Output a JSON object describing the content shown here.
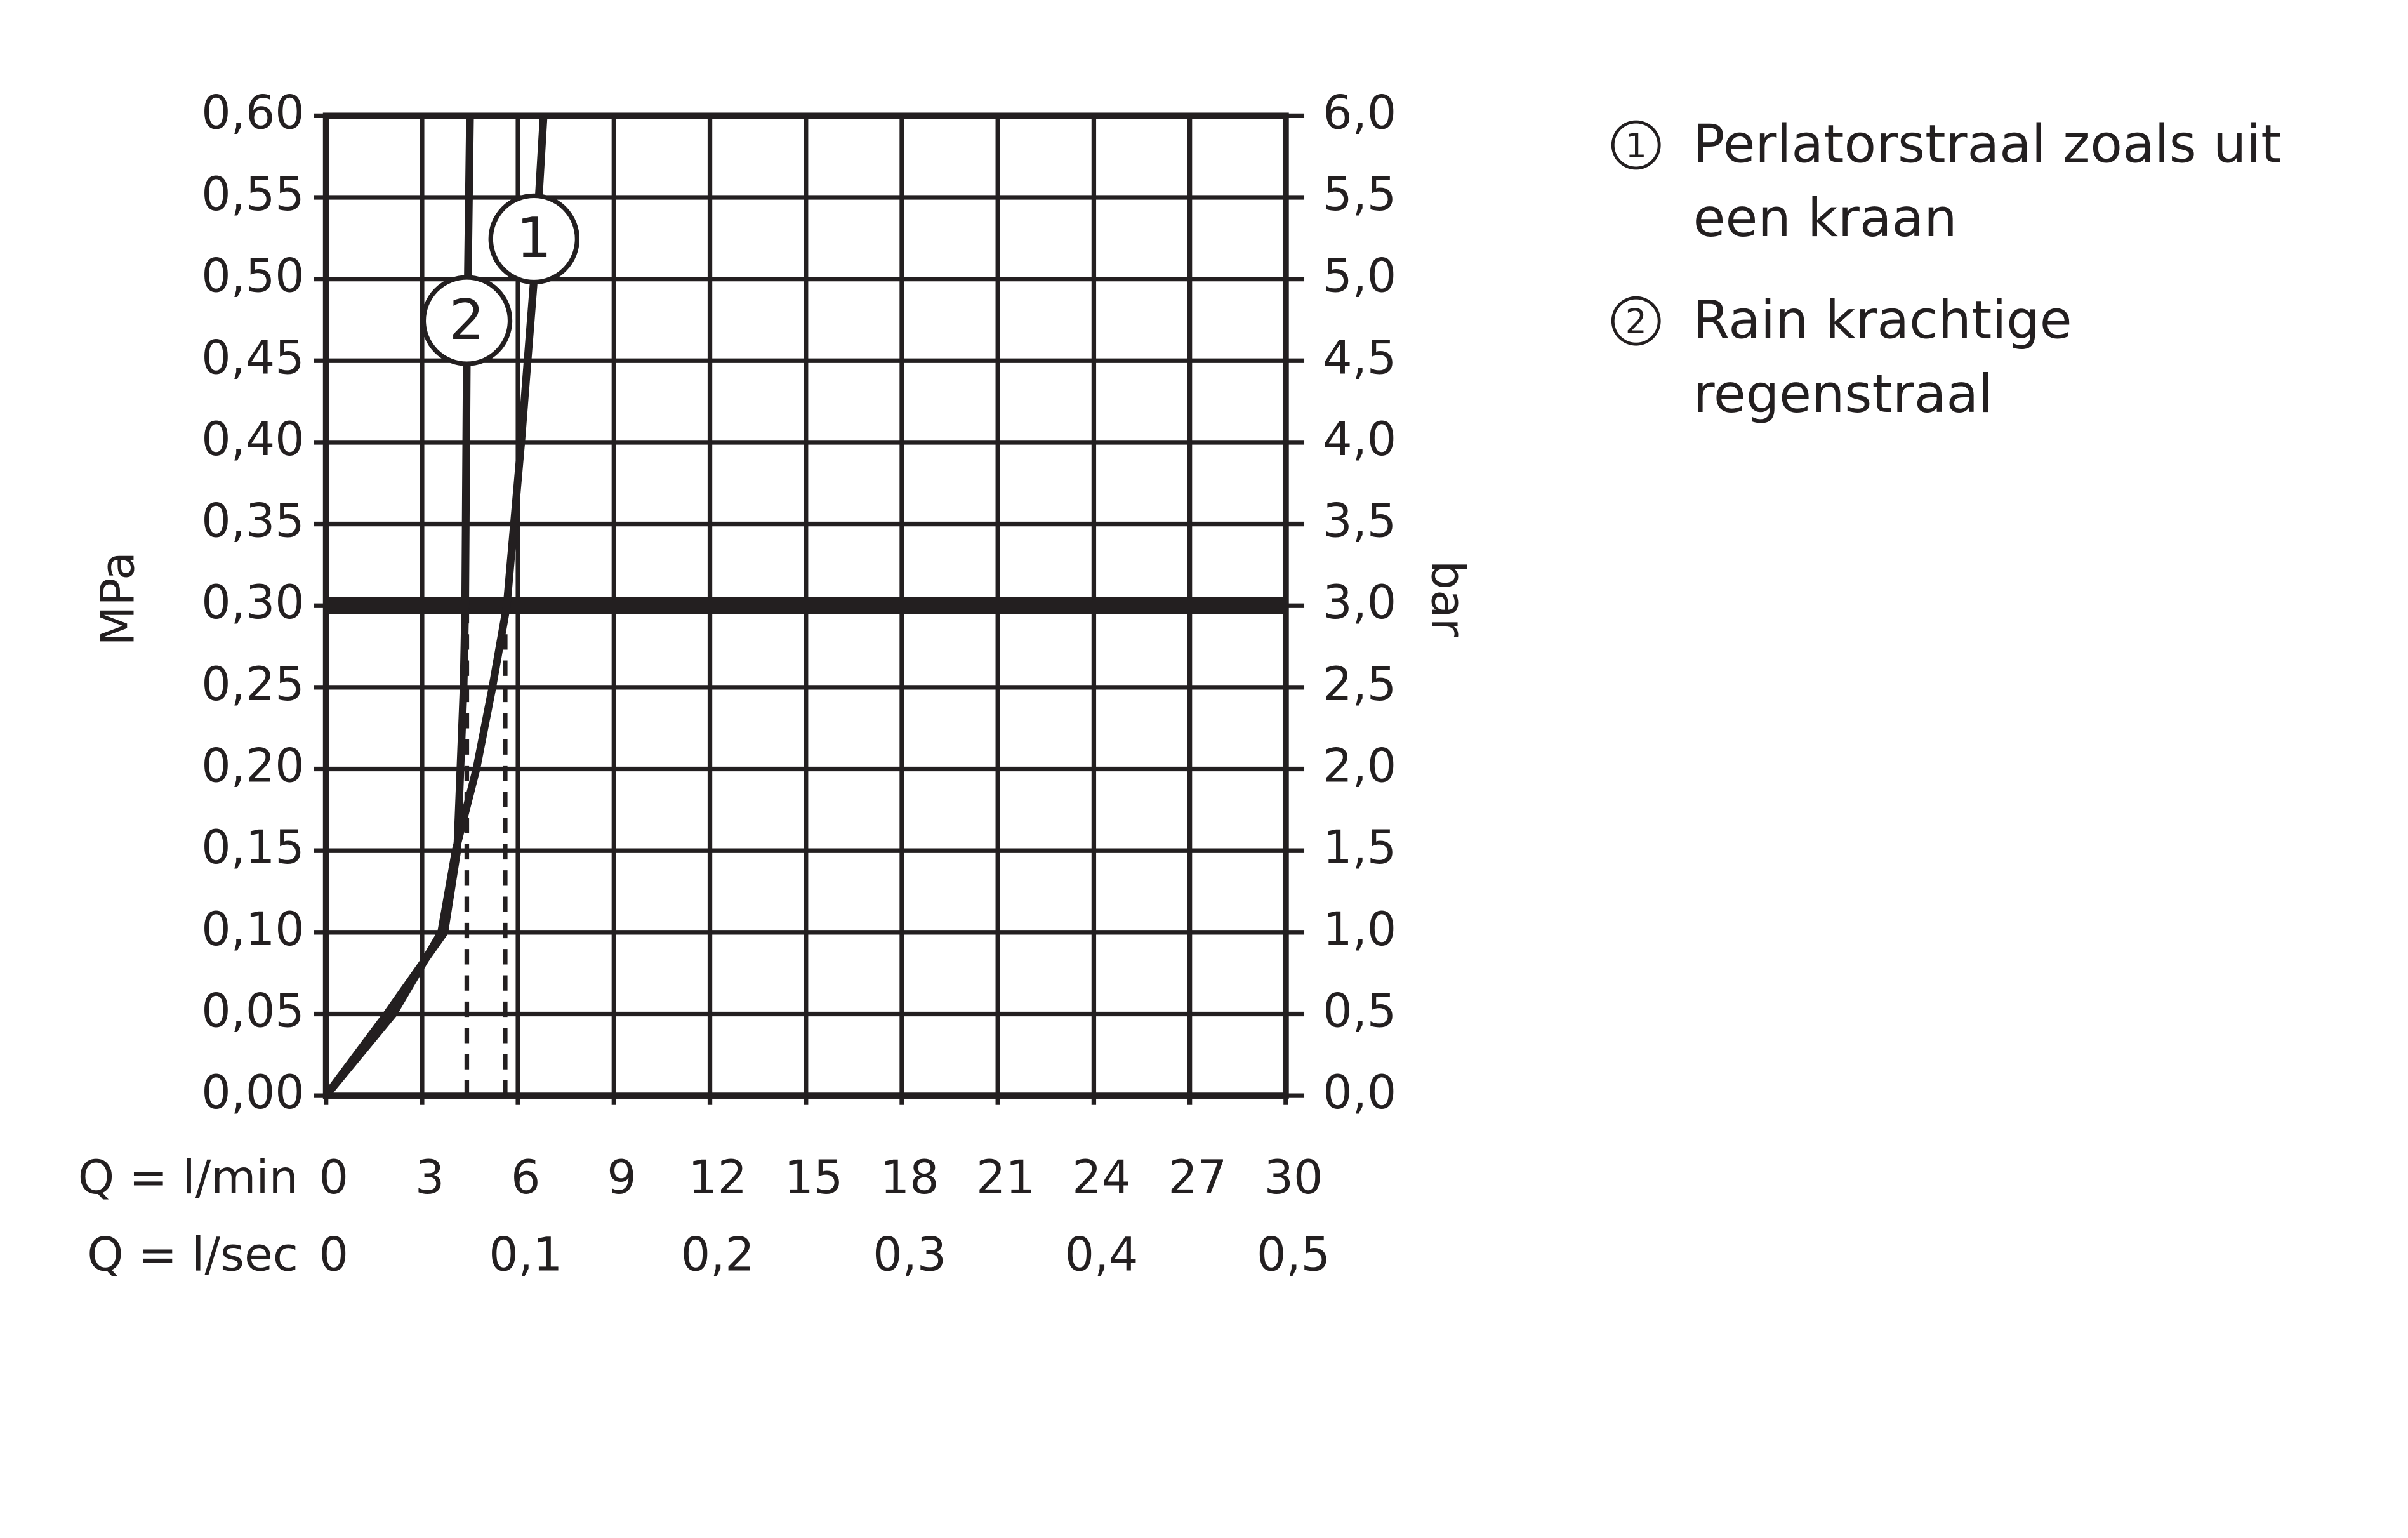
{
  "chart_data": {
    "type": "line",
    "y_label": "MPa",
    "y2_label": "bar",
    "x_label": "Q = l/min",
    "x2_label": "Q = l/sec",
    "xlim": [
      0,
      30
    ],
    "xticks": [
      0,
      3,
      6,
      9,
      12,
      15,
      18,
      21,
      24,
      27,
      30
    ],
    "x2lim": [
      0,
      0.5
    ],
    "x2ticks": [
      0,
      {
        "value": 0.1,
        "label": "0,1"
      },
      {
        "value": 0.2,
        "label": "0,2"
      },
      {
        "value": 0.3,
        "label": "0,3"
      },
      {
        "value": 0.4,
        "label": "0,4"
      },
      {
        "value": 0.5,
        "label": "0,5"
      }
    ],
    "ylim": [
      0,
      0.6
    ],
    "yticks": [
      {
        "value": 0,
        "label": "0,00"
      },
      {
        "value": 0.05,
        "label": "0,05"
      },
      {
        "value": 0.1,
        "label": "0,10"
      },
      {
        "value": 0.15,
        "label": "0,15"
      },
      {
        "value": 0.2,
        "label": "0,20"
      },
      {
        "value": 0.25,
        "label": "0,25"
      },
      {
        "value": 0.3,
        "label": "0,30"
      },
      {
        "value": 0.35,
        "label": "0,35"
      },
      {
        "value": 0.4,
        "label": "0,40"
      },
      {
        "value": 0.45,
        "label": "0,45"
      },
      {
        "value": 0.5,
        "label": "0,50"
      },
      {
        "value": 0.55,
        "label": "0,55"
      },
      {
        "value": 0.6,
        "label": "0,60"
      }
    ],
    "y2lim": [
      0,
      6
    ],
    "y2ticks": [
      {
        "value": 0,
        "label": "0,0"
      },
      {
        "value": 0.5,
        "label": "0,5"
      },
      {
        "value": 1,
        "label": "1,0"
      },
      {
        "value": 1.5,
        "label": "1,5"
      },
      {
        "value": 2,
        "label": "2,0"
      },
      {
        "value": 2.5,
        "label": "2,5"
      },
      {
        "value": 3,
        "label": "3,0"
      },
      {
        "value": 3.5,
        "label": "3,5"
      },
      {
        "value": 4,
        "label": "4,0"
      },
      {
        "value": 4.5,
        "label": "4,5"
      },
      {
        "value": 5,
        "label": "5,0"
      },
      {
        "value": 5.5,
        "label": "5,5"
      },
      {
        "value": 6,
        "label": "6,0"
      }
    ],
    "grid": true,
    "reference_y": 0.3,
    "dashed_x": [
      4.4,
      5.6
    ],
    "series": [
      {
        "name": "Perlatorstraal zoals uit een kraan",
        "label": "1",
        "color": "#231f20",
        "x": [
          0,
          2.1,
          3.6,
          4.05,
          4.7,
          5.2,
          5.65,
          6.1,
          6.5,
          6.8
        ],
        "values": [
          0,
          0.05,
          0.1,
          0.15,
          0.2,
          0.25,
          0.3,
          0.4,
          0.5,
          0.6
        ]
      },
      {
        "name": "Rain krachtige regenstraal",
        "label": "2",
        "color": "#231f20",
        "x": [
          0,
          1.9,
          3.7,
          4.1,
          4.3,
          4.35,
          4.4,
          4.5
        ],
        "values": [
          0,
          0.05,
          0.1,
          0.15,
          0.25,
          0.3,
          0.45,
          0.6
        ]
      }
    ]
  }
}
